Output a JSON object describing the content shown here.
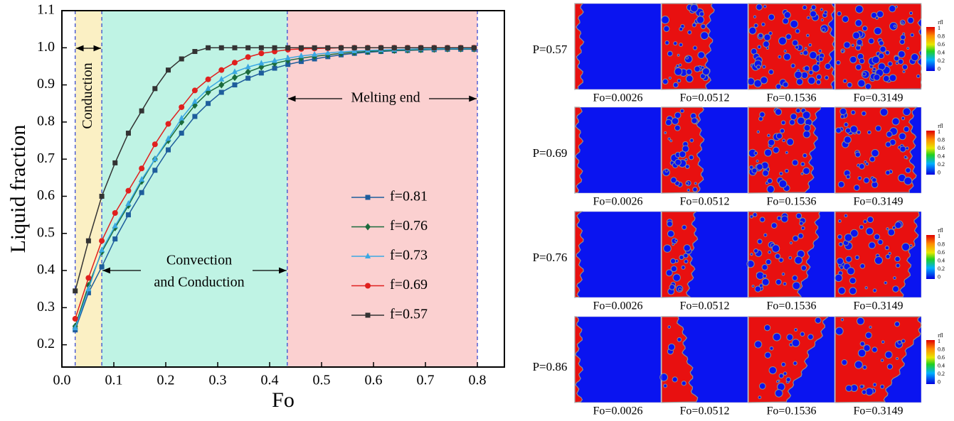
{
  "chart_data": {
    "type": "line",
    "xlabel": "Fo",
    "ylabel": "Liquid fraction",
    "xlim": [
      0,
      0.852
    ],
    "ylim": [
      0.14,
      1.1
    ],
    "xticks": [
      {
        "value": 0,
        "label": "0.0"
      },
      0.1,
      0.2,
      0.3,
      0.4,
      0.5,
      0.6,
      0.7,
      0.8
    ],
    "yticks": [
      0.2,
      0.3,
      0.4,
      0.5,
      0.6,
      0.7,
      0.8,
      0.9,
      {
        "value": 1,
        "label": "1.0"
      },
      1.1
    ],
    "legend": "right",
    "regions": [
      {
        "label": [
          "Conduction"
        ],
        "from": 0.0256,
        "to": 0.0768,
        "color": "#fbf0c4"
      },
      {
        "label": [
          "Convection",
          "and Conduction"
        ],
        "from": 0.0768,
        "to": 0.434,
        "color": "#bff3e4"
      },
      {
        "label": [
          "Melting end"
        ],
        "from": 0.434,
        "to": 0.8,
        "color": "#fbd0d0"
      }
    ],
    "x": [
      0.0256,
      0.0512,
      0.0768,
      0.1024,
      0.128,
      0.1536,
      0.1792,
      0.2048,
      0.2304,
      0.256,
      0.2816,
      0.3072,
      0.3328,
      0.3584,
      0.384,
      0.4096,
      0.4352,
      0.4608,
      0.4864,
      0.512,
      0.5376,
      0.5632,
      0.5888,
      0.6144,
      0.64,
      0.6656,
      0.6912,
      0.7168,
      0.7424,
      0.768,
      0.7936
    ],
    "series": [
      {
        "name": "f=0.81",
        "color": "#1e5d9c",
        "marker": "square",
        "values": [
          0.24,
          0.34,
          0.41,
          0.485,
          0.55,
          0.61,
          0.67,
          0.725,
          0.77,
          0.815,
          0.85,
          0.88,
          0.9,
          0.918,
          0.932,
          0.945,
          0.955,
          0.963,
          0.97,
          0.976,
          0.981,
          0.985,
          0.988,
          0.99,
          0.992,
          0.993,
          0.994,
          0.995,
          0.996,
          0.996,
          0.996
        ]
      },
      {
        "name": "f=0.76",
        "color": "#1b6b3c",
        "marker": "diamond",
        "values": [
          0.25,
          0.36,
          0.45,
          0.515,
          0.575,
          0.64,
          0.7,
          0.75,
          0.8,
          0.845,
          0.88,
          0.9,
          0.92,
          0.935,
          0.948,
          0.958,
          0.966,
          0.972,
          0.977,
          0.981,
          0.985,
          0.988,
          0.99,
          0.992,
          0.993,
          0.994,
          0.995,
          0.996,
          0.997,
          0.997,
          0.997
        ]
      },
      {
        "name": "f=0.73",
        "color": "#3ba8e2",
        "marker": "triangle",
        "values": [
          0.245,
          0.35,
          0.455,
          0.52,
          0.58,
          0.645,
          0.7,
          0.755,
          0.81,
          0.855,
          0.89,
          0.915,
          0.935,
          0.948,
          0.958,
          0.965,
          0.972,
          0.978,
          0.982,
          0.986,
          0.989,
          0.991,
          0.993,
          0.994,
          0.995,
          0.996,
          0.997,
          0.997,
          0.998,
          0.998,
          0.998
        ]
      },
      {
        "name": "f=0.69",
        "color": "#e0201e",
        "marker": "circle",
        "values": [
          0.27,
          0.38,
          0.48,
          0.555,
          0.615,
          0.675,
          0.74,
          0.795,
          0.84,
          0.885,
          0.915,
          0.94,
          0.96,
          0.975,
          0.985,
          0.99,
          0.995,
          0.997,
          0.998,
          0.999,
          1,
          1,
          1,
          1,
          1,
          1,
          1,
          1,
          1,
          1,
          1
        ]
      },
      {
        "name": "f=0.57",
        "color": "#333333",
        "marker": "square",
        "values": [
          0.345,
          0.48,
          0.6,
          0.69,
          0.77,
          0.83,
          0.89,
          0.94,
          0.97,
          0.99,
          1,
          1,
          1,
          1,
          1,
          1,
          1,
          1,
          1,
          1,
          1,
          1,
          1,
          1,
          1,
          1,
          1,
          1,
          1,
          1,
          1
        ]
      }
    ]
  },
  "simulation_panels": {
    "rows": [
      {
        "label": "P=0.57",
        "captions": [
          "Fo=0.0026",
          "Fo=0.0512",
          "Fo=0.1536",
          "Fo=0.3149"
        ]
      },
      {
        "label": "P=0.69",
        "captions": [
          "Fo=0.0026",
          "Fo=0.0512",
          "Fo=0.1536",
          "Fo=0.3149"
        ]
      },
      {
        "label": "P=0.76",
        "captions": [
          "Fo=0.0026",
          "Fo=0.0512",
          "Fo=0.1536",
          "Fo=0.3149"
        ]
      },
      {
        "label": "P=0.86",
        "captions": [
          "Fo=0.0026",
          "Fo=0.0512",
          "Fo=0.1536",
          "Fo=0.3149"
        ]
      }
    ],
    "colorbar": {
      "title": "rfl",
      "labels": [
        "1",
        "0.8",
        "0.6",
        "0.4",
        "0.2",
        "0"
      ]
    }
  }
}
